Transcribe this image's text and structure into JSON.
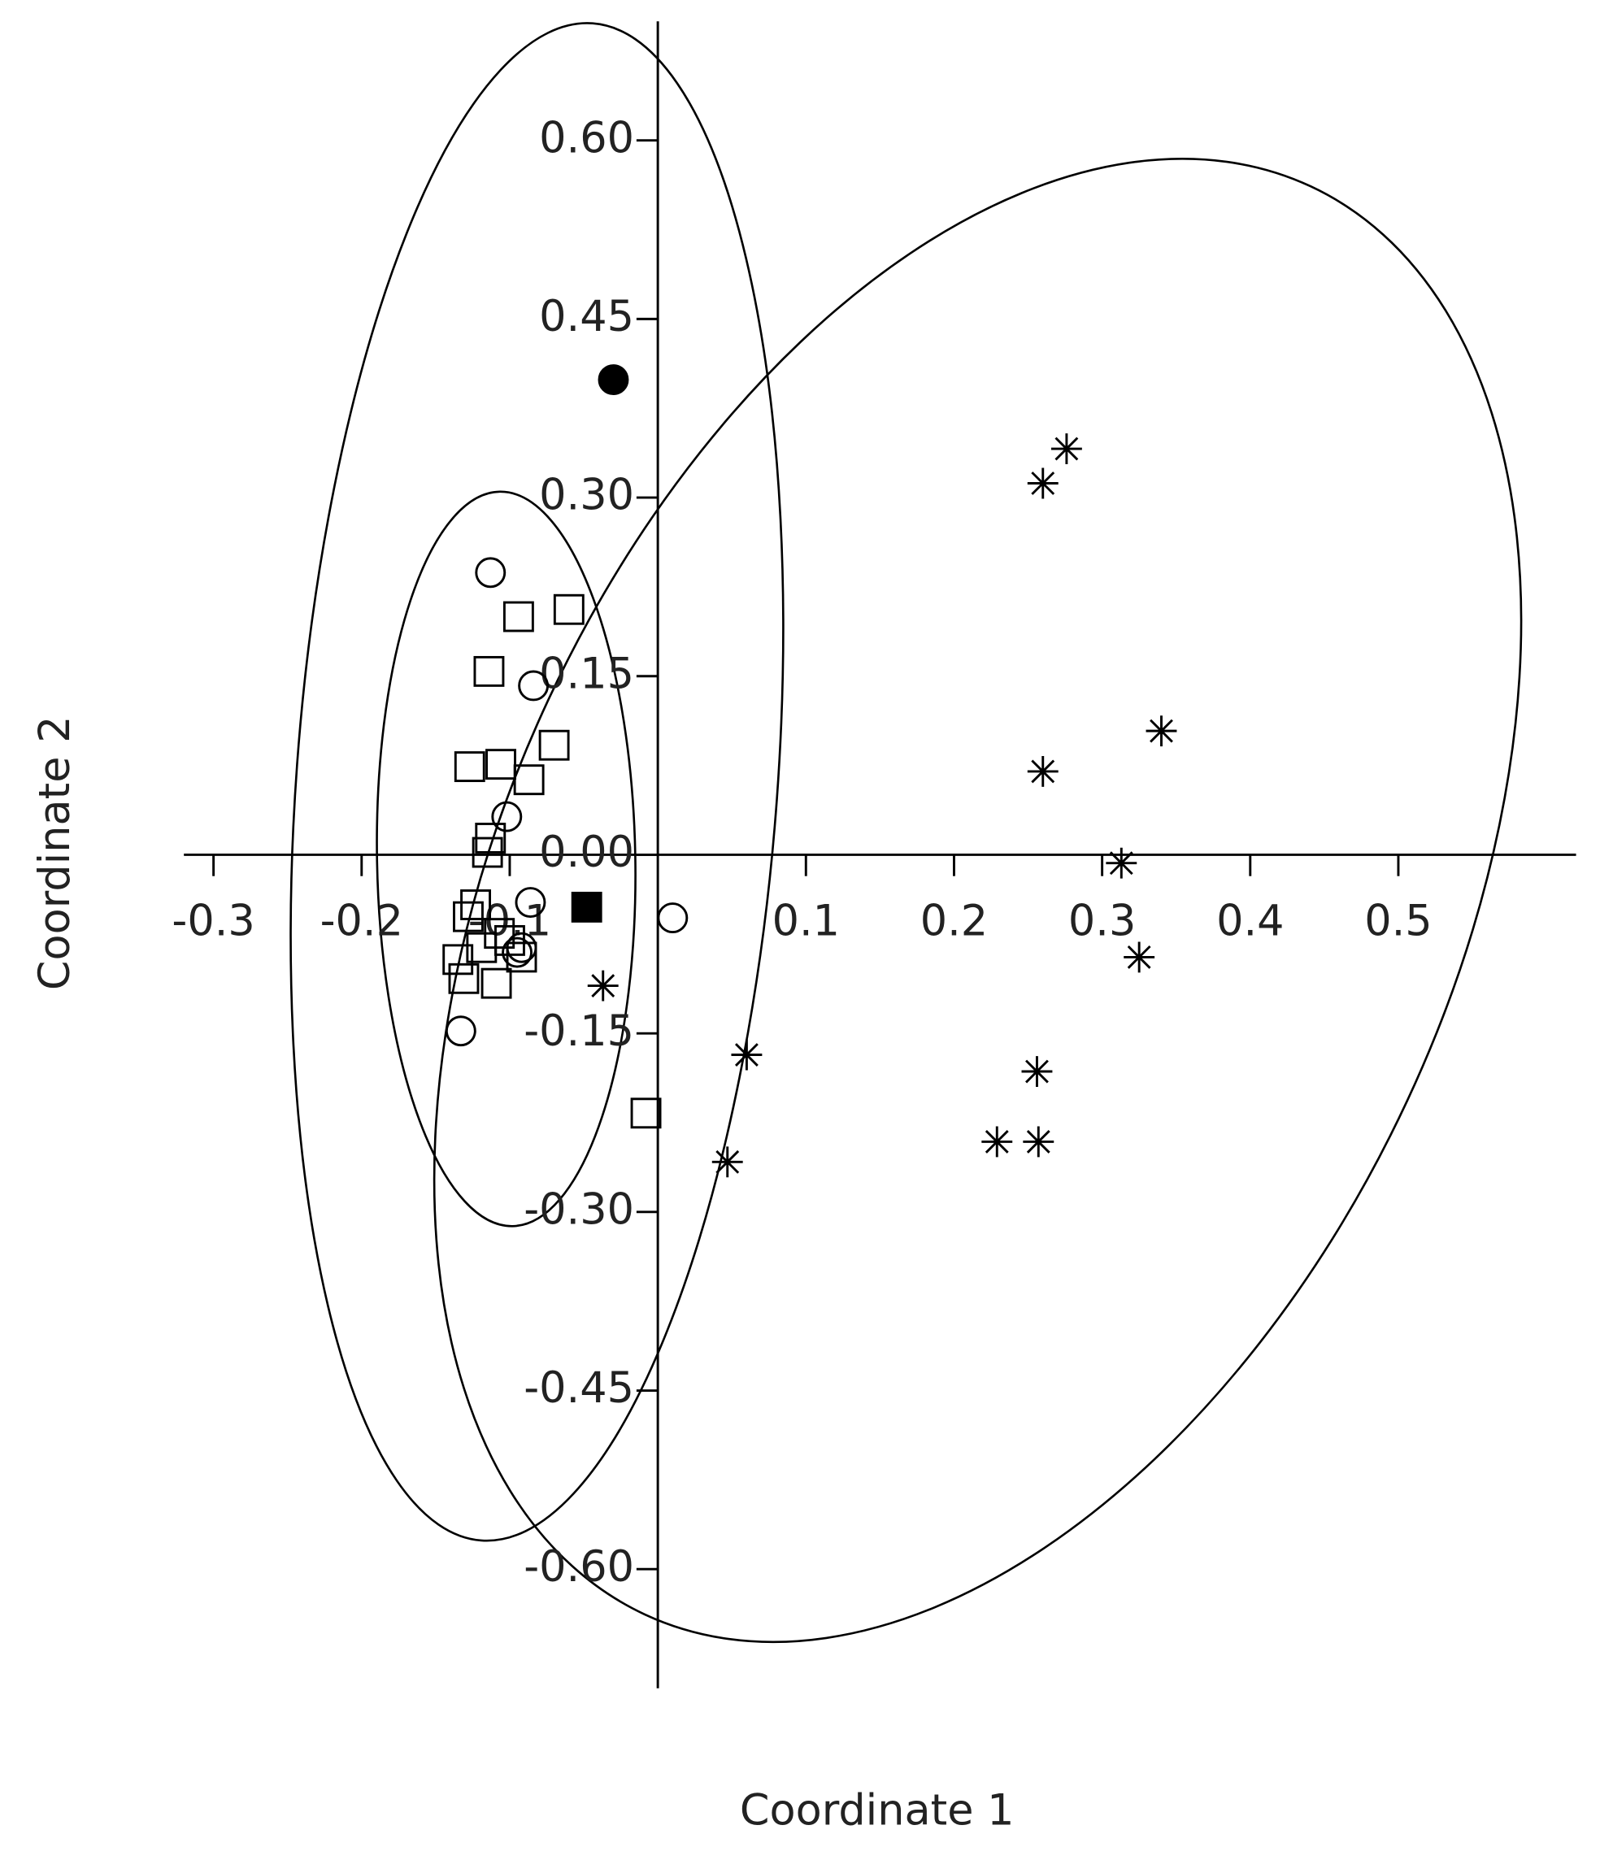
{
  "chart_data": {
    "type": "scatter",
    "x_label": "Coordinate 1",
    "y_label": "Coordinate 2",
    "xlim": [
      -0.32,
      0.62
    ],
    "ylim": [
      -0.7,
      0.7
    ],
    "xticks": [
      -0.3,
      -0.2,
      -0.1,
      0.1,
      0.2,
      0.3,
      0.4,
      0.5
    ],
    "yticks": [
      {
        "value": 0.6,
        "label": "0.60"
      },
      0.45,
      {
        "value": 0.3,
        "label": "0.30"
      },
      0.15,
      {
        "value": 0,
        "label": "0.00"
      },
      -0.15,
      {
        "value": -0.3,
        "label": "-0.30"
      },
      -0.45,
      {
        "value": -0.6,
        "label": "-0.60"
      }
    ],
    "series": [
      {
        "marker": "square",
        "filled": false,
        "color": "#000000",
        "x": [
          -0.094,
          -0.06,
          -0.114,
          -0.07,
          -0.127,
          -0.106,
          -0.087,
          -0.113,
          -0.115,
          -0.123,
          -0.128,
          -0.107,
          -0.119,
          -0.135,
          -0.131,
          -0.109,
          -0.092,
          -0.008,
          -0.1
        ],
        "values": [
          0.2,
          0.206,
          0.154,
          0.092,
          0.074,
          0.076,
          0.063,
          0.014,
          0.002,
          -0.042,
          -0.052,
          -0.066,
          -0.078,
          -0.088,
          -0.104,
          -0.108,
          -0.086,
          -0.217,
          -0.072
        ]
      },
      {
        "marker": "square",
        "filled": true,
        "color": "#000000",
        "x": [
          -0.048
        ],
        "values": [
          -0.044
        ]
      },
      {
        "marker": "circle",
        "filled": false,
        "color": "#000000",
        "x": [
          -0.113,
          -0.084,
          -0.102,
          -0.086,
          0.01,
          -0.092,
          -0.133,
          -0.095
        ],
        "values": [
          0.237,
          0.142,
          0.032,
          -0.04,
          -0.053,
          -0.078,
          -0.148,
          -0.082
        ]
      },
      {
        "marker": "circle",
        "filled": true,
        "color": "#000000",
        "x": [
          -0.03
        ],
        "values": [
          0.399
        ]
      },
      {
        "marker": "asterisk",
        "filled": false,
        "color": "#000000",
        "x": [
          0.276,
          0.26,
          0.34,
          0.26,
          0.313,
          0.325,
          0.256,
          0.229,
          0.257,
          0.06,
          0.047,
          -0.037
        ],
        "values": [
          0.341,
          0.312,
          0.104,
          0.07,
          -0.007,
          -0.086,
          -0.182,
          -0.241,
          -0.241,
          -0.168,
          -0.258,
          -0.11
        ]
      }
    ]
  }
}
